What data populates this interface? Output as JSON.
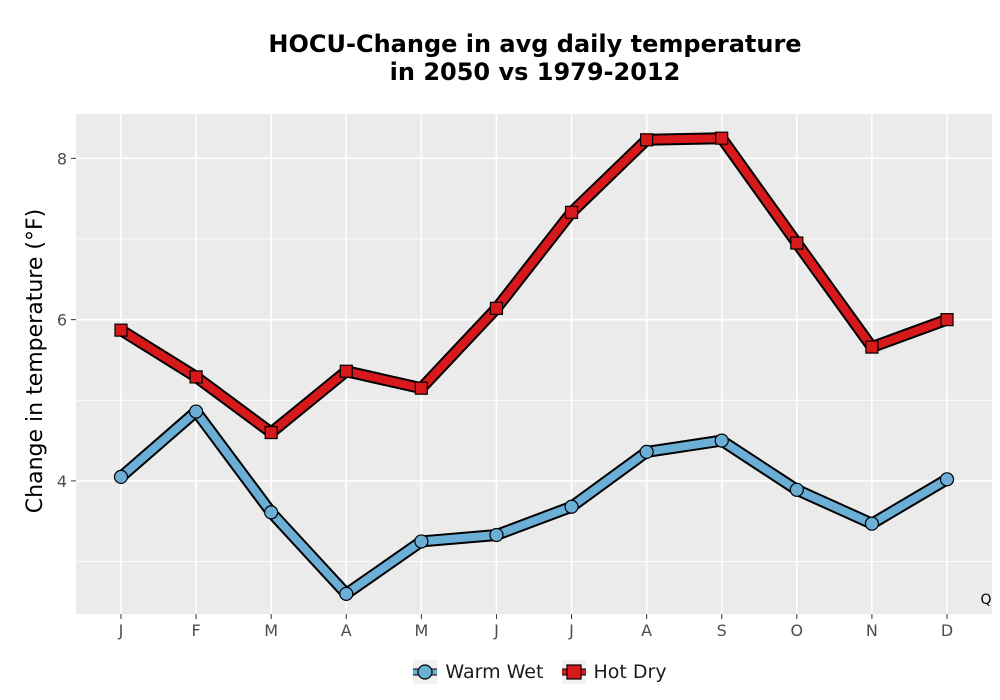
{
  "chart_data": {
    "type": "line",
    "title": [
      "HOCU-Change in avg daily temperature",
      "in 2050 vs 1979-2012"
    ],
    "ylabel": "Change in temperature (°F)",
    "xlabel": "",
    "categories": [
      "J",
      "F",
      "M",
      "A",
      "M",
      "J",
      "J",
      "A",
      "S",
      "O",
      "N",
      "D"
    ],
    "ylim": [
      2.35,
      8.55
    ],
    "yticks": [
      4,
      6,
      8
    ],
    "corner_label": "Q",
    "grid": true,
    "legend_position": "bottom",
    "series": [
      {
        "name": "Warm Wet",
        "color": "#6baed6",
        "marker": "circle",
        "values": [
          4.05,
          4.86,
          3.61,
          2.6,
          3.25,
          3.33,
          3.68,
          4.36,
          4.5,
          3.89,
          3.47,
          4.02
        ]
      },
      {
        "name": "Hot Dry",
        "color": "#d7191c",
        "marker": "square",
        "values": [
          5.87,
          5.29,
          4.6,
          5.36,
          5.15,
          6.14,
          7.33,
          8.23,
          8.25,
          6.95,
          5.66,
          6.0
        ]
      }
    ]
  }
}
